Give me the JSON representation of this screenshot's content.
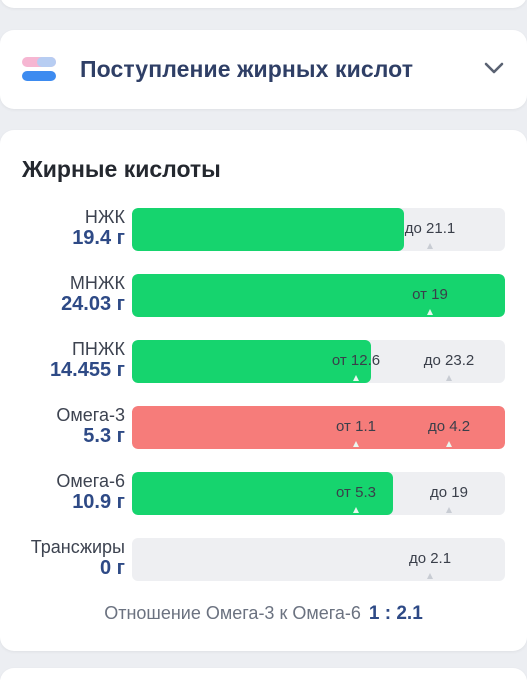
{
  "collapse_section": {
    "title": "Поступление жирных кислот"
  },
  "fatty_acids": {
    "title": "Жирные кислоты",
    "rows": [
      {
        "label": "НЖК",
        "value": "19.4 г",
        "fill_fraction": 0.73,
        "fill_color": "#16d46e",
        "markers": [
          {
            "text": "до 21.1",
            "at": 0.8
          }
        ]
      },
      {
        "label": "МНЖК",
        "value": "24.03 г",
        "fill_fraction": 1.0,
        "fill_color": "#16d46e",
        "markers": [
          {
            "text": "от 19",
            "at": 0.8
          }
        ]
      },
      {
        "label": "ПНЖК",
        "value": "14.455 г",
        "fill_fraction": 0.64,
        "fill_color": "#16d46e",
        "markers": [
          {
            "text": "от 12.6",
            "at": 0.6
          },
          {
            "text": "до 23.2",
            "at": 0.85
          }
        ]
      },
      {
        "label": "Омега-3",
        "value": "5.3 г",
        "fill_fraction": 1.0,
        "fill_color": "#f67c7a",
        "markers": [
          {
            "text": "от 1.1",
            "at": 0.6
          },
          {
            "text": "до 4.2",
            "at": 0.85
          }
        ]
      },
      {
        "label": "Омега-6",
        "value": "10.9 г",
        "fill_fraction": 0.7,
        "fill_color": "#16d46e",
        "markers": [
          {
            "text": "от 5.3",
            "at": 0.6
          },
          {
            "text": "до 19",
            "at": 0.85
          }
        ]
      },
      {
        "label": "Трансжиры",
        "value": "0 г",
        "fill_fraction": 0.0,
        "fill_color": "#16d46e",
        "markers": [
          {
            "text": "до 2.1",
            "at": 0.8
          }
        ]
      }
    ],
    "ratio_label": "Отношение Омега-3 к Омега-6",
    "ratio_value": "1 : 2.1"
  }
}
